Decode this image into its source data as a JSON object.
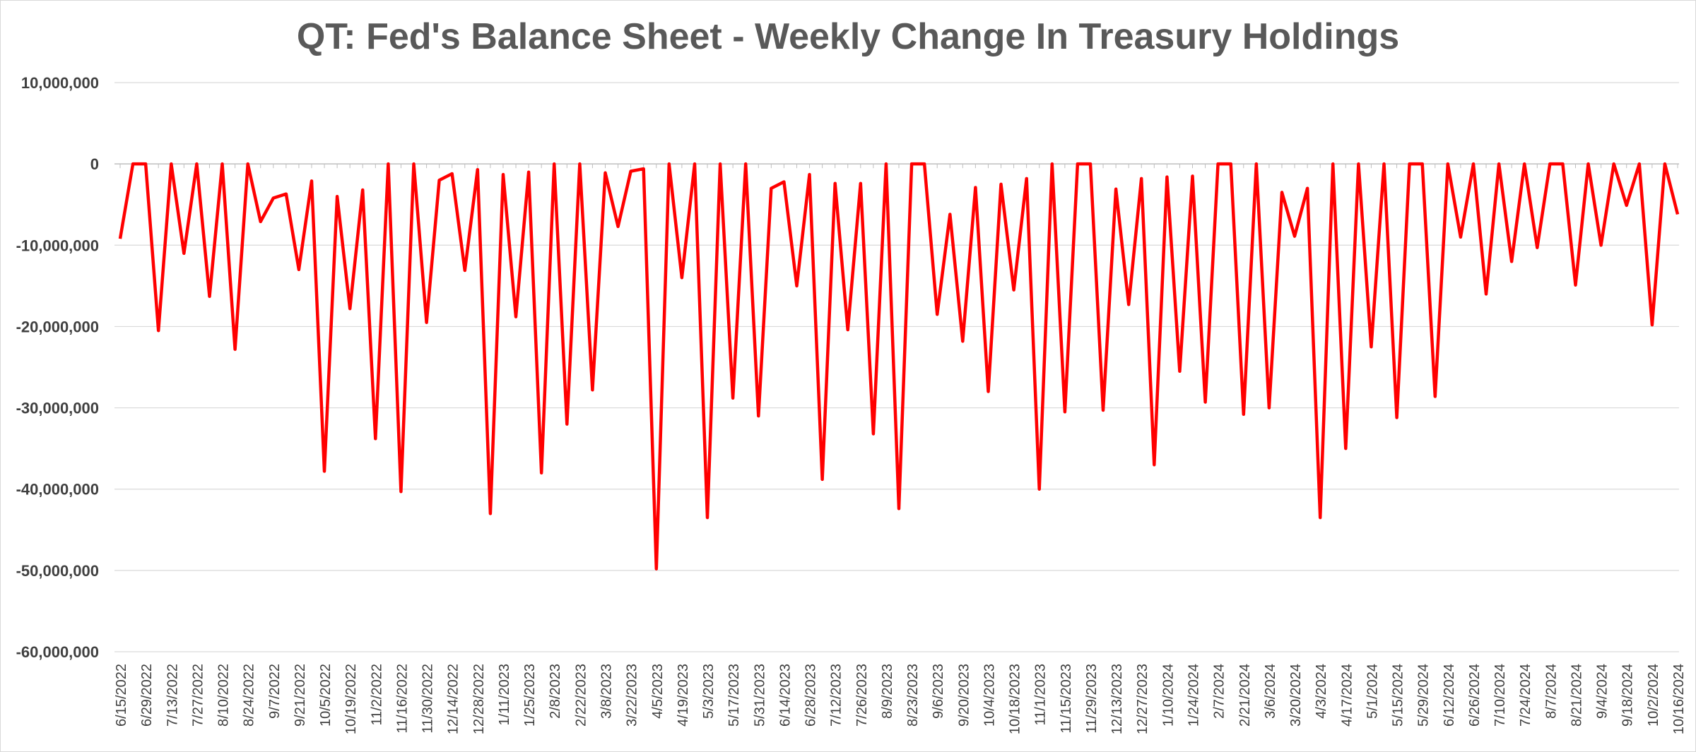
{
  "chart_data": {
    "type": "line",
    "title": "QT: Fed's Balance Sheet - Weekly Change In Treasury Holdings",
    "xlabel": "",
    "ylabel": "",
    "ylim": [
      -60000000,
      10000000
    ],
    "yticks": [
      10000000,
      0,
      -10000000,
      -20000000,
      -30000000,
      -40000000,
      -50000000,
      -60000000
    ],
    "ytick_labels": [
      "10,000,000",
      "0",
      "-10,000,000",
      "-20,000,000",
      "-30,000,000",
      "-40,000,000",
      "-50,000,000",
      "-60,000,000"
    ],
    "grid": true,
    "legend": "none",
    "line_color": "#ff0000",
    "x_tick_labels": [
      "6/15/2022",
      "6/29/2022",
      "7/13/2022",
      "7/27/2022",
      "8/10/2022",
      "8/24/2022",
      "9/7/2022",
      "9/21/2022",
      "10/5/2022",
      "10/19/2022",
      "11/2/2022",
      "11/16/2022",
      "11/30/2022",
      "12/14/2022",
      "12/28/2022",
      "1/11/2023",
      "1/25/2023",
      "2/8/2023",
      "2/22/2023",
      "3/8/2023",
      "3/22/2023",
      "4/5/2023",
      "4/19/2023",
      "5/3/2023",
      "5/17/2023",
      "5/31/2023",
      "6/14/2023",
      "6/28/2023",
      "7/12/2023",
      "7/26/2023",
      "8/9/2023",
      "8/23/2023",
      "9/6/2023",
      "9/20/2023",
      "10/4/2023",
      "10/18/2023",
      "11/1/2023",
      "11/15/2023",
      "11/29/2023",
      "12/13/2023",
      "12/27/2023",
      "1/10/2024",
      "1/24/2024",
      "2/7/2024",
      "2/21/2024",
      "3/6/2024",
      "3/20/2024",
      "4/3/2024",
      "4/17/2024",
      "5/1/2024",
      "5/15/2024",
      "5/29/2024",
      "6/12/2024",
      "6/26/2024",
      "7/10/2024",
      "7/24/2024",
      "8/7/2024",
      "8/21/2024",
      "9/4/2024",
      "9/18/2024",
      "10/2/2024",
      "10/16/2024"
    ],
    "values": [
      -9200000,
      0,
      0,
      -20500000,
      0,
      -11000000,
      0,
      -16300000,
      0,
      -22800000,
      0,
      -7100000,
      -4200000,
      -3700000,
      -13000000,
      -2100000,
      -37800000,
      -4000000,
      -17800000,
      -3200000,
      -33800000,
      0,
      -40300000,
      0,
      -19500000,
      -2000000,
      -1200000,
      -13100000,
      -700000,
      -43000000,
      -1300000,
      -18800000,
      -1000000,
      -38000000,
      0,
      -32000000,
      0,
      -27800000,
      -1100000,
      -7700000,
      -900000,
      -600000,
      -49800000,
      0,
      -14000000,
      0,
      -43500000,
      0,
      -28800000,
      0,
      -31000000,
      -3000000,
      -2200000,
      -15000000,
      -1300000,
      -38800000,
      -2400000,
      -20400000,
      -2400000,
      -33200000,
      0,
      -42400000,
      0,
      0,
      -18500000,
      -6200000,
      -21800000,
      -2900000,
      -28000000,
      -2500000,
      -15500000,
      -1800000,
      -40000000,
      0,
      -30500000,
      0,
      0,
      -30300000,
      -3100000,
      -17300000,
      -1800000,
      -37000000,
      -1600000,
      -25500000,
      -1500000,
      -29300000,
      0,
      0,
      -30800000,
      0,
      -30000000,
      -3500000,
      -8900000,
      -3000000,
      -43500000,
      0,
      -35000000,
      0,
      -22500000,
      0,
      -31200000,
      0,
      0,
      -28600000,
      0,
      -9000000,
      0,
      -16000000,
      0,
      -12000000,
      0,
      -10300000,
      0,
      0,
      -14900000,
      0,
      -10000000,
      0,
      -5100000,
      0,
      -19800000,
      0,
      -6200000
    ]
  }
}
